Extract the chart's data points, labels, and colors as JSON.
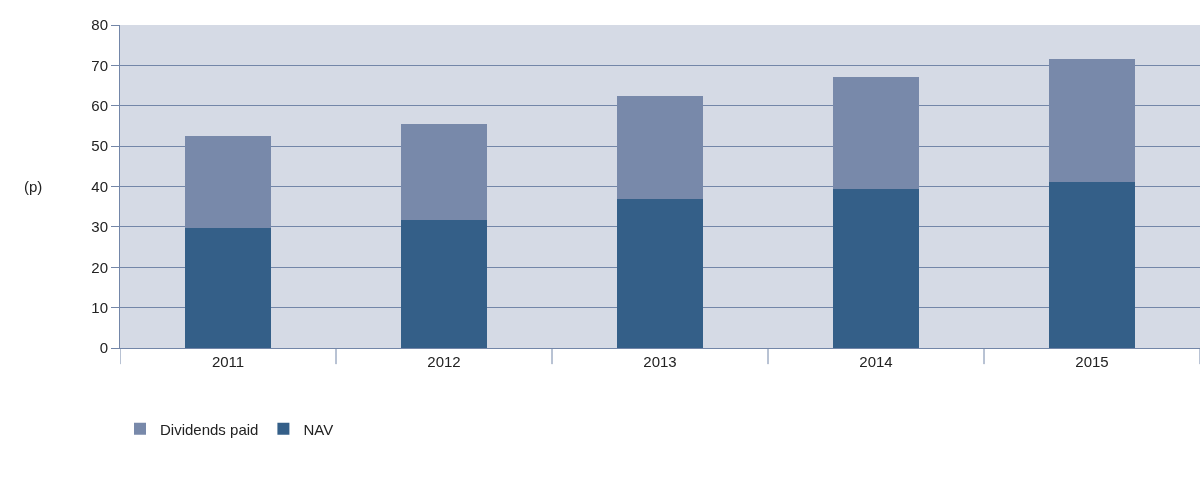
{
  "chart_data": {
    "type": "bar",
    "stacked": true,
    "ylabel": "(p)",
    "categories": [
      "2011",
      "2012",
      "2013",
      "2014",
      "2015"
    ],
    "series": [
      {
        "name": "NAV",
        "color": "#345f88",
        "values": [
          29.8,
          31.8,
          36.8,
          39.5,
          41.2
        ]
      },
      {
        "name": "Dividends paid",
        "color": "#7889aa",
        "values": [
          22.7,
          23.8,
          25.6,
          27.6,
          30.4
        ]
      }
    ],
    "ylim": [
      0,
      80
    ],
    "yticks": [
      0,
      10,
      20,
      30,
      40,
      50,
      60,
      70,
      80
    ],
    "grid": "y",
    "legend": "bottom left"
  }
}
